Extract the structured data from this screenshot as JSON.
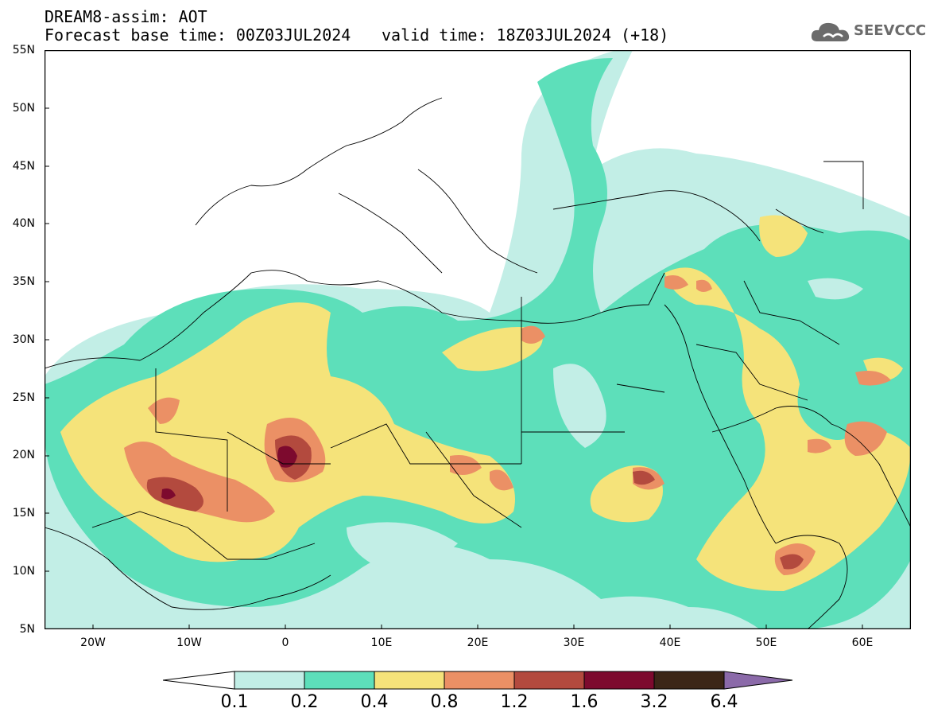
{
  "title": {
    "line1": "DREAM8-assim: AOT",
    "line2": "Forecast base time: 00Z03JUL2024",
    "line3": "valid time: 18Z03JUL2024 (+18)"
  },
  "logo": {
    "text": "SEEVCCC",
    "icon": "cloud-icon"
  },
  "lat_labels": [
    "55N",
    "50N",
    "45N",
    "40N",
    "35N",
    "30N",
    "25N",
    "20N",
    "15N",
    "10N",
    "5N"
  ],
  "lon_labels": [
    "20W",
    "10W",
    "0",
    "10E",
    "20E",
    "30E",
    "40E",
    "50E",
    "60E"
  ],
  "colorbar": {
    "labels": [
      "0.1",
      "0.2",
      "0.4",
      "0.8",
      "1.2",
      "1.6",
      "3.2",
      "6.4"
    ],
    "colors": [
      "#c2eee6",
      "#5ddfba",
      "#f5e37a",
      "#eb9065",
      "#b34a3e",
      "#7d0a2e",
      "#3c2617",
      "#8b6aa9"
    ]
  }
}
